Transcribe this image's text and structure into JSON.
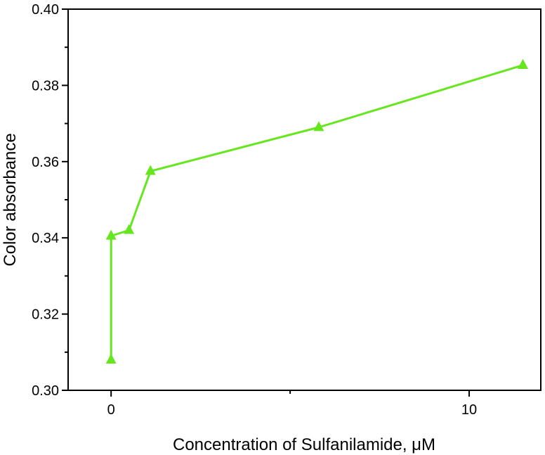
{
  "chart_data": {
    "type": "line",
    "title": "",
    "xlabel": "Concentration of Sulfanilamide, μM",
    "ylabel": "Color absorbance",
    "xlim": [
      -1.2,
      12.0
    ],
    "ylim": [
      0.3,
      0.4
    ],
    "x_ticks": [
      0,
      10
    ],
    "x_tick_labels": [
      "0",
      "10"
    ],
    "x_minor_ticks": [
      5
    ],
    "y_ticks": [
      0.3,
      0.32,
      0.34,
      0.36,
      0.38,
      0.4
    ],
    "y_tick_labels": [
      "0.30",
      "0.32",
      "0.34",
      "0.36",
      "0.38",
      "0.40"
    ],
    "y_minor_ticks": [
      0.31,
      0.33,
      0.35,
      0.37,
      0.39
    ],
    "grid": false,
    "legend": "none",
    "series": [
      {
        "marker": "triangle",
        "color": "#66e61e",
        "x": [
          0.0,
          0.0,
          0.5,
          1.1,
          5.8,
          11.5,
          11.5
        ],
        "y": [
          0.308,
          0.3405,
          0.342,
          0.3575,
          0.369,
          0.3853,
          0.3853
        ]
      }
    ]
  }
}
